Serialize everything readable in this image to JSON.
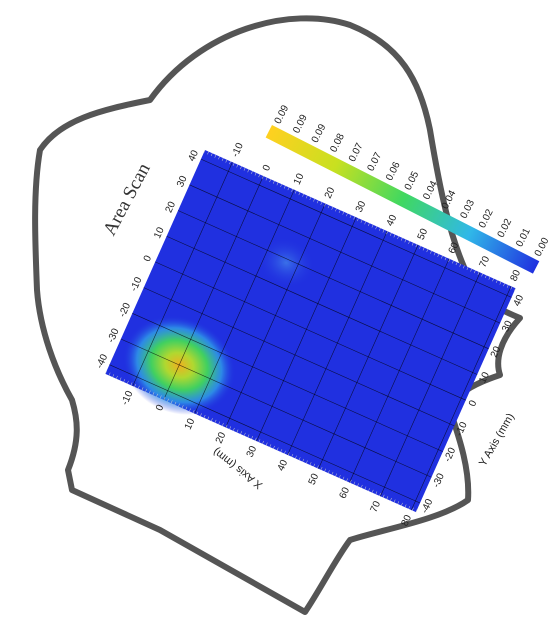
{
  "title": "Area Scan",
  "x_axis": {
    "label": "X Axis (mm)",
    "ticks": [
      "-10",
      "0",
      "10",
      "20",
      "30",
      "40",
      "50",
      "60",
      "70",
      "80"
    ]
  },
  "y_axis": {
    "label": "Y Axis (mm)",
    "ticks": [
      "40",
      "30",
      "20",
      "10",
      "0",
      "-10",
      "-20",
      "-30",
      "-40"
    ]
  },
  "colorbar": {
    "labels": [
      "0.09",
      "0.09",
      "0.09",
      "0.08",
      "0.07",
      "0.07",
      "0.06",
      "0.05",
      "0.04",
      "0.04",
      "0.03",
      "0.02",
      "0.02",
      "0.01",
      "0.00"
    ]
  }
}
